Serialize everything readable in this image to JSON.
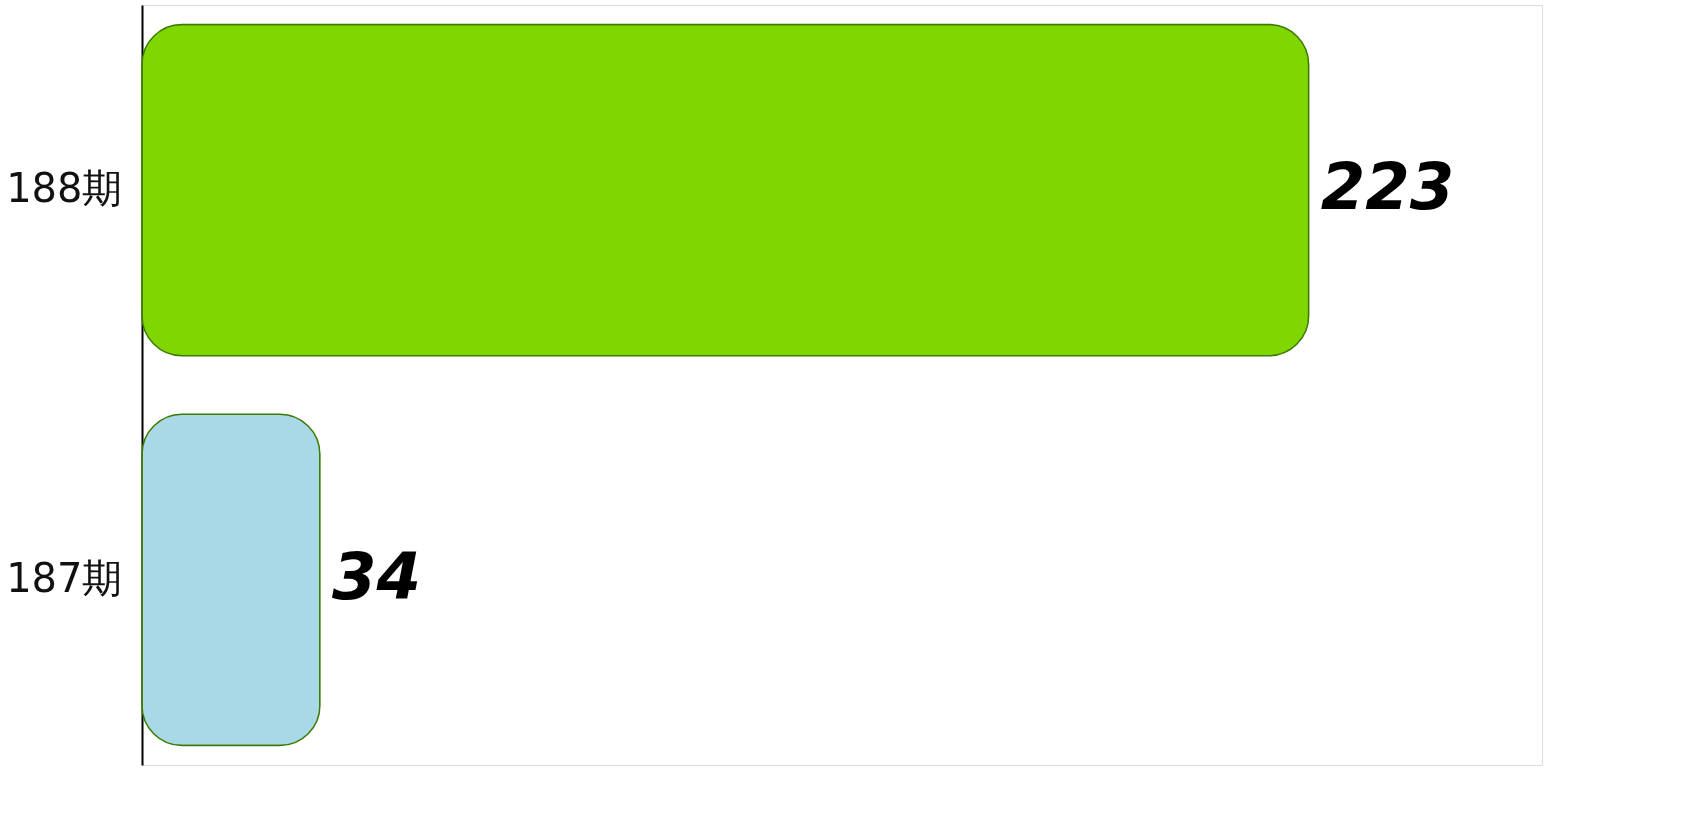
{
  "chart_data": {
    "type": "bar",
    "orientation": "horizontal",
    "categories": [
      "188期",
      "187期"
    ],
    "values": [
      223,
      34
    ],
    "colors": [
      "#7fd600",
      "#a9d8e6"
    ],
    "data_labels": true
  }
}
